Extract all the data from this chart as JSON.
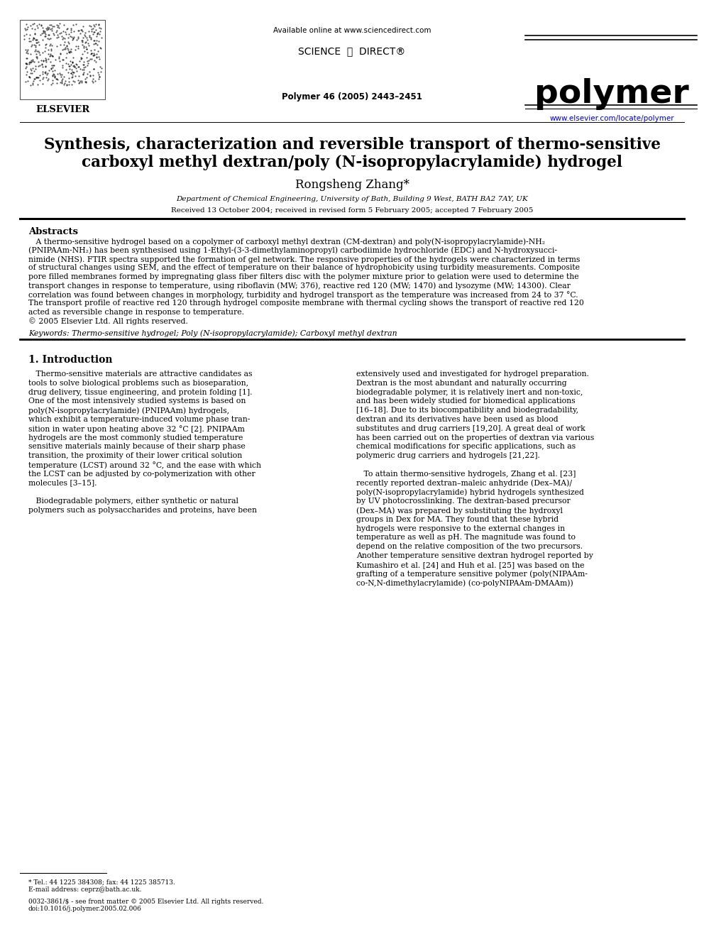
{
  "title_line1": "Synthesis, characterization and reversible transport of thermo-sensitive",
  "title_line2": "carboxyl methyl dextran/poly (N-isopropylacrylamide) hydrogel",
  "author": "Rongsheng Zhang*",
  "affiliation": "Department of Chemical Engineering, University of Bath, Building 9 West, BATH BA2 7AY, UK",
  "received": "Received 13 October 2004; received in revised form 5 February 2005; accepted 7 February 2005",
  "journal_header": "Available online at www.sciencedirect.com",
  "journal_ref": "Polymer 46 (2005) 2443–2451",
  "journal_name": "polymer",
  "journal_url": "www.elsevier.com/locate/polymer",
  "elsevier_text": "ELSEVIER",
  "abstract_title": "Abstracts",
  "keywords": "Keywords: Thermo-sensitive hydrogel; Poly (N-isopropylacrylamide); Carboxyl methyl dextran",
  "section1_title": "1. Introduction",
  "footer_line1": "* Tel.: 44 1225 384308; fax: 44 1225 385713.",
  "footer_line2": "E-mail address: ceprz@bath.ac.uk.",
  "footer_line3": "0032-3861/$ - see front matter © 2005 Elsevier Ltd. All rights reserved.",
  "footer_line4": "doi:10.1016/j.polymer.2005.02.006",
  "bg_color": "#ffffff",
  "text_color": "#000000",
  "link_color": "#0000cc",
  "abs_lines": [
    "   A thermo-sensitive hydrogel based on a copolymer of carboxyl methyl dextran (CM-dextran) and poly(N-isopropylacrylamide)-NH₂",
    "(PNIPAAm-NH₂) has been synthesised using 1-Ethyl-(3-3-dimethylaminopropyl) carbodiimide hydrochloride (EDC) and N-hydroxysucci-",
    "nimide (NHS). FTIR spectra supported the formation of gel network. The responsive properties of the hydrogels were characterized in terms",
    "of structural changes using SEM, and the effect of temperature on their balance of hydrophobicity using turbidity measurements. Composite",
    "pore filled membranes formed by impregnating glass fiber filters disc with the polymer mixture prior to gelation were used to determine the",
    "transport changes in response to temperature, using riboflavin (MW; 376), reactive red 120 (MW; 1470) and lysozyme (MW; 14300). Clear",
    "correlation was found between changes in morphology, turbidity and hydrogel transport as the temperature was increased from 24 to 37 °C.",
    "The transport profile of reactive red 120 through hydrogel composite membrane with thermal cycling shows the transport of reactive red 120",
    "acted as reversible change in response to temperature.",
    "© 2005 Elsevier Ltd. All rights reserved."
  ],
  "col1_lines": [
    "   Thermo-sensitive materials are attractive candidates as",
    "tools to solve biological problems such as bioseparation,",
    "drug delivery, tissue engineering, and protein folding [1].",
    "One of the most intensively studied systems is based on",
    "poly(N-isopropylacrylamide) (PNIPAAm) hydrogels,",
    "which exhibit a temperature-induced volume phase tran-",
    "sition in water upon heating above 32 °C [2]. PNIPAAm",
    "hydrogels are the most commonly studied temperature",
    "sensitive materials mainly because of their sharp phase",
    "transition, the proximity of their lower critical solution",
    "temperature (LCST) around 32 °C, and the ease with which",
    "the LCST can be adjusted by co-polymerization with other",
    "molecules [3–15].",
    "",
    "   Biodegradable polymers, either synthetic or natural",
    "polymers such as polysaccharides and proteins, have been"
  ],
  "col2_lines": [
    "extensively used and investigated for hydrogel preparation.",
    "Dextran is the most abundant and naturally occurring",
    "biodegradable polymer, it is relatively inert and non-toxic,",
    "and has been widely studied for biomedical applications",
    "[16–18]. Due to its biocompatibility and biodegradability,",
    "dextran and its derivatives have been used as blood",
    "substitutes and drug carriers [19,20]. A great deal of work",
    "has been carried out on the properties of dextran via various",
    "chemical modifications for specific applications, such as",
    "polymeric drug carriers and hydrogels [21,22].",
    "",
    "   To attain thermo-sensitive hydrogels, Zhang et al. [23]",
    "recently reported dextran–maleic anhydride (Dex–MA)/",
    "poly(N-isopropylacrylamide) hybrid hydrogels synthesized",
    "by UV photocrosslinking. The dextran-based precursor",
    "(Dex–MA) was prepared by substituting the hydroxyl",
    "groups in Dex for MA. They found that these hybrid",
    "hydrogels were responsive to the external changes in",
    "temperature as well as pH. The magnitude was found to",
    "depend on the relative composition of the two precursors.",
    "Another temperature sensitive dextran hydrogel reported by",
    "Kumashiro et al. [24] and Huh et al. [25] was based on the",
    "grafting of a temperature sensitive polymer (poly(NIPAAm-",
    "co-N,N-dimethylacrylamide) (co-polyNIPAAm-DMAAm))"
  ]
}
